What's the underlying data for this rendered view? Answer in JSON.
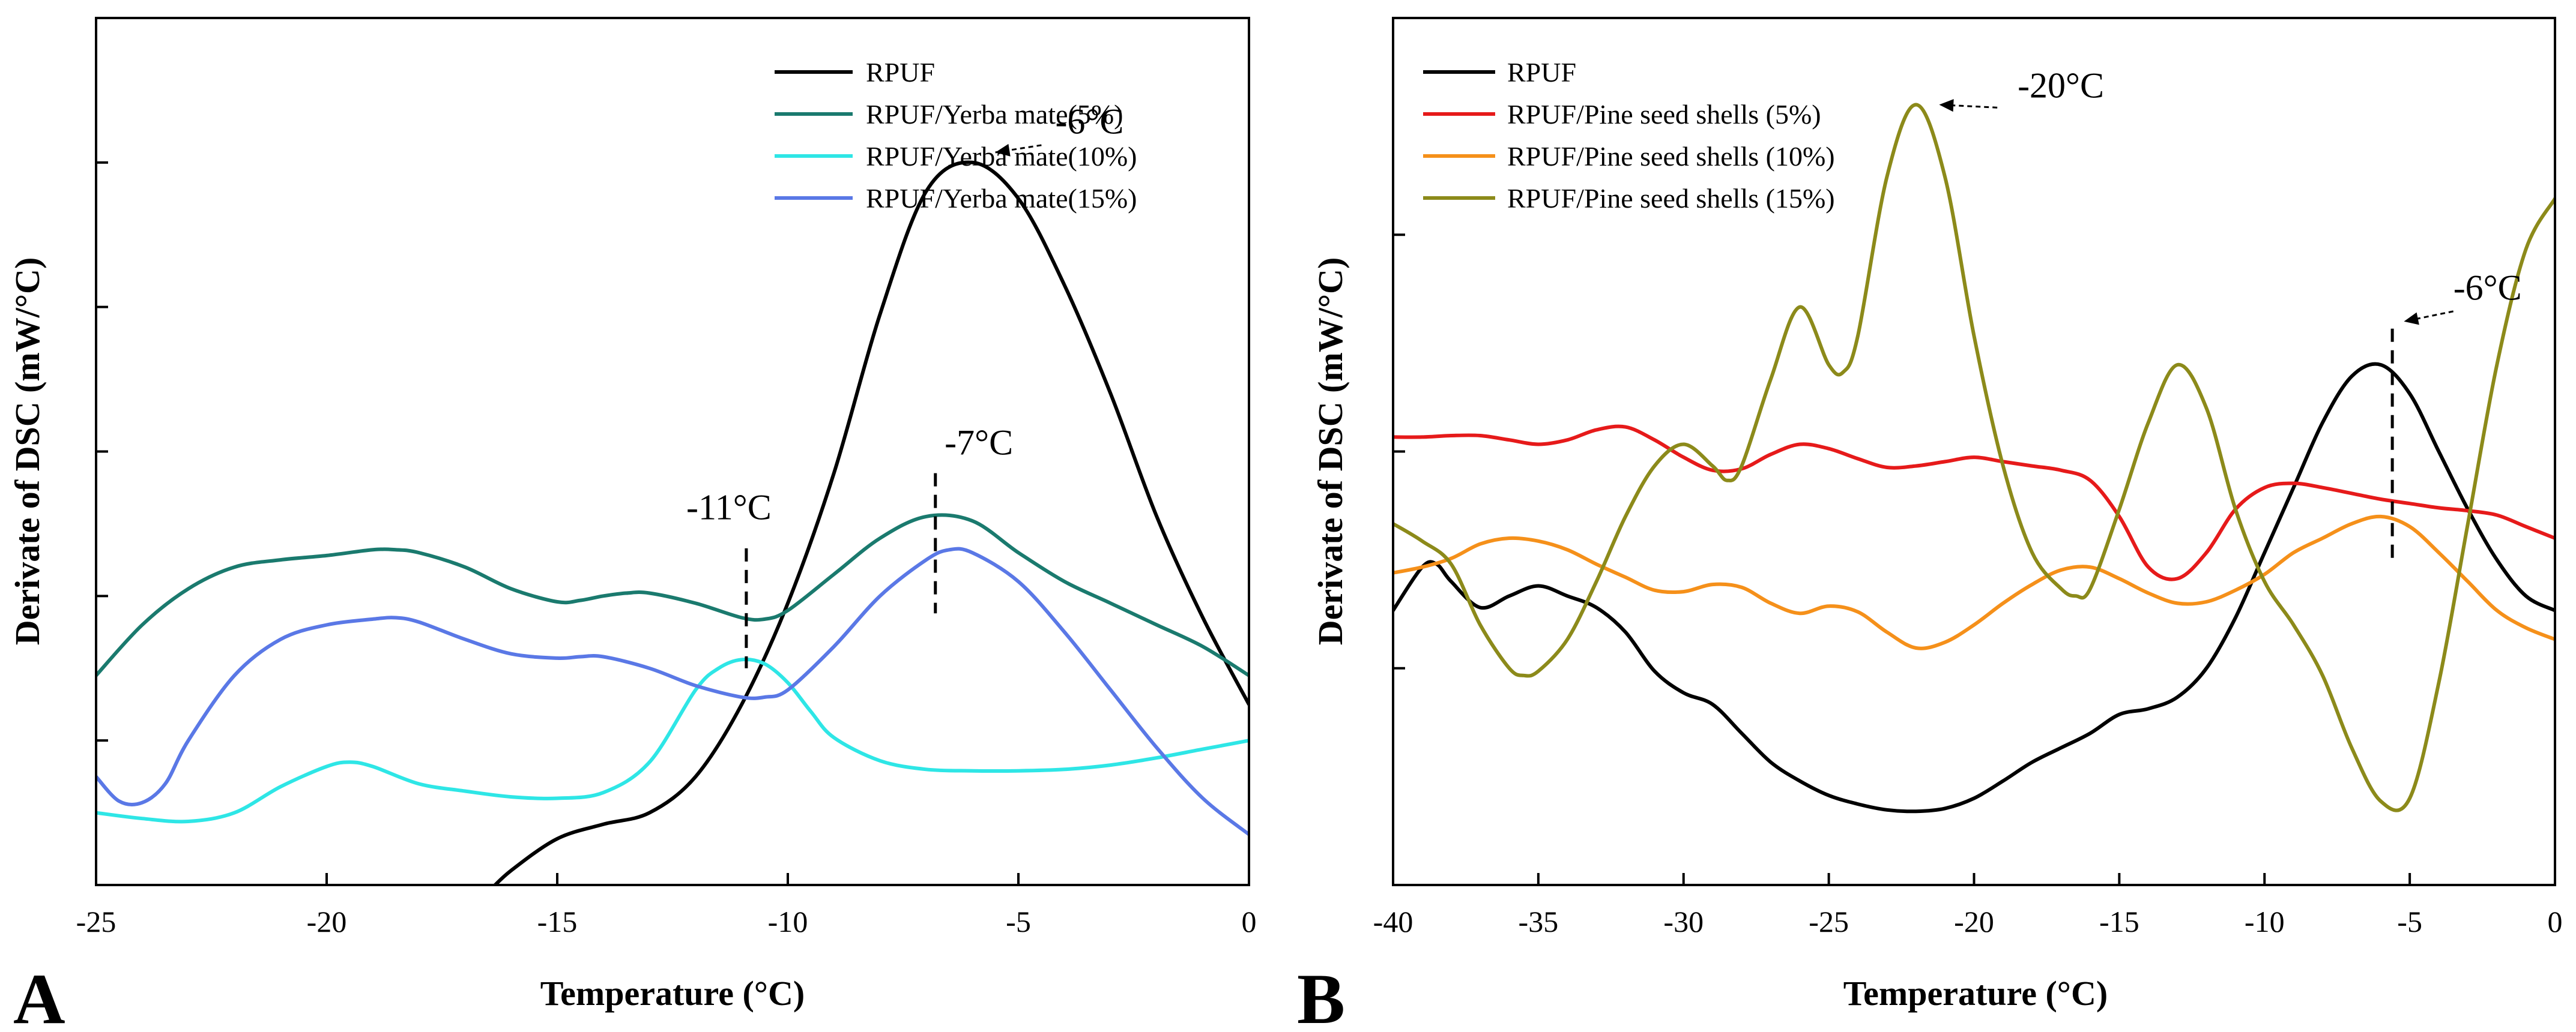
{
  "chart_data": [
    {
      "type": "line",
      "panel_label": "A",
      "xlabel": "Temperature (°C)",
      "ylabel": "Derivate of DSC (mW/°C)",
      "xlim": [
        -25,
        0
      ],
      "ylim": [
        0,
        6
      ],
      "x_ticks": [
        -25,
        -20,
        -15,
        -10,
        -5,
        0
      ],
      "x_tick_labels": [
        "-25",
        "-20",
        "-15",
        "-10",
        "-5",
        "0"
      ],
      "y_ticks": [
        0,
        1,
        2,
        3,
        4,
        5,
        6
      ],
      "grid": false,
      "legend_position": "top-right",
      "series": [
        {
          "name": "RPUF",
          "color": "#000000",
          "x": [
            -16.5,
            -16.0,
            -15.0,
            -14.0,
            -13.0,
            -12.0,
            -11.0,
            -10.0,
            -9.0,
            -8.0,
            -7.0,
            -6.0,
            -5.0,
            -4.0,
            -3.0,
            -2.0,
            -1.0,
            0.0
          ],
          "y": [
            -0.05,
            0.1,
            0.32,
            0.42,
            0.5,
            0.75,
            1.25,
            1.95,
            2.85,
            3.95,
            4.8,
            5.0,
            4.75,
            4.15,
            3.4,
            2.55,
            1.85,
            1.25
          ]
        },
        {
          "name": "RPUF/Yerba mate(5%)",
          "color": "#1a7a6e",
          "x": [
            -25,
            -24,
            -23,
            -22,
            -21,
            -20,
            -19,
            -18.5,
            -18,
            -17,
            -16,
            -15,
            -14.5,
            -14,
            -13.5,
            -13,
            -12,
            -11,
            -10.5,
            -10,
            -9,
            -8,
            -7,
            -6,
            -5,
            -4,
            -3,
            -2,
            -1,
            0
          ],
          "y": [
            1.45,
            1.8,
            2.05,
            2.2,
            2.25,
            2.28,
            2.32,
            2.32,
            2.3,
            2.2,
            2.05,
            1.96,
            1.97,
            2.0,
            2.02,
            2.02,
            1.95,
            1.85,
            1.84,
            1.9,
            2.15,
            2.4,
            2.55,
            2.52,
            2.3,
            2.1,
            1.95,
            1.8,
            1.65,
            1.45
          ]
        },
        {
          "name": "RPUF/Yerba mate(10%)",
          "color": "#2ee6e6",
          "x": [
            -25,
            -24,
            -23,
            -22,
            -21,
            -20,
            -19.5,
            -19,
            -18,
            -17,
            -16,
            -15,
            -14,
            -13,
            -12,
            -11.5,
            -11,
            -10.5,
            -10,
            -9.5,
            -9,
            -8,
            -7,
            -6,
            -5,
            -4,
            -3,
            -2,
            -1,
            0
          ],
          "y": [
            0.5,
            0.46,
            0.44,
            0.5,
            0.68,
            0.82,
            0.85,
            0.82,
            0.7,
            0.65,
            0.61,
            0.6,
            0.64,
            0.85,
            1.35,
            1.5,
            1.56,
            1.53,
            1.4,
            1.2,
            1.02,
            0.86,
            0.8,
            0.79,
            0.79,
            0.8,
            0.83,
            0.88,
            0.94,
            1.0
          ]
        },
        {
          "name": "RPUF/Yerba mate(15%)",
          "color": "#5a78e6",
          "x": [
            -25,
            -24.5,
            -24,
            -23.5,
            -23,
            -22,
            -21,
            -20,
            -19,
            -18.5,
            -18,
            -17,
            -16,
            -15,
            -14.5,
            -14,
            -13,
            -12,
            -11,
            -10.5,
            -10,
            -9,
            -8,
            -7,
            -6.5,
            -6,
            -5,
            -4,
            -3,
            -2,
            -1,
            0
          ],
          "y": [
            0.75,
            0.58,
            0.57,
            0.7,
            1.0,
            1.45,
            1.7,
            1.8,
            1.84,
            1.85,
            1.82,
            1.7,
            1.6,
            1.57,
            1.58,
            1.58,
            1.5,
            1.38,
            1.3,
            1.3,
            1.35,
            1.65,
            2.0,
            2.25,
            2.32,
            2.3,
            2.1,
            1.75,
            1.35,
            0.95,
            0.6,
            0.35
          ]
        }
      ],
      "annotations": [
        {
          "text": "-6°C",
          "x": -4.2,
          "y": 5.2
        },
        {
          "text": "-7°C",
          "x": -6.6,
          "y": 2.98
        },
        {
          "text": "-11°C",
          "x": -12.2,
          "y": 2.53
        }
      ]
    },
    {
      "type": "line",
      "panel_label": "B",
      "xlabel": "Temperature (°C)",
      "ylabel": "Derivate of DSC (mW/°C)",
      "xlim": [
        -40,
        0
      ],
      "ylim": [
        0,
        6
      ],
      "x_ticks": [
        -40,
        -35,
        -30,
        -25,
        -20,
        -15,
        -10,
        -5,
        0
      ],
      "x_tick_labels": [
        "-40",
        "-35",
        "-30",
        "-25",
        "-20",
        "-15",
        "-10",
        "-5",
        "0"
      ],
      "y_ticks": [
        0,
        1.5,
        3,
        4.5,
        6
      ],
      "grid": false,
      "legend_position": "top-left",
      "series": [
        {
          "name": "RPUF",
          "color": "#000000",
          "x": [
            -40,
            -39,
            -38.5,
            -38,
            -37,
            -36,
            -35,
            -34,
            -33,
            -32,
            -31,
            -30,
            -29,
            -28,
            -27,
            -26,
            -25,
            -24,
            -23,
            -22,
            -21,
            -20,
            -19,
            -18,
            -17,
            -16,
            -15,
            -14,
            -13,
            -12,
            -11,
            -10,
            -9,
            -8,
            -7,
            -6,
            -5,
            -4,
            -3,
            -2,
            -1,
            0
          ],
          "y": [
            1.9,
            2.2,
            2.22,
            2.1,
            1.92,
            2.0,
            2.07,
            2.0,
            1.92,
            1.75,
            1.48,
            1.33,
            1.25,
            1.05,
            0.85,
            0.72,
            0.62,
            0.56,
            0.52,
            0.51,
            0.53,
            0.6,
            0.72,
            0.85,
            0.95,
            1.05,
            1.18,
            1.22,
            1.3,
            1.5,
            1.85,
            2.3,
            2.75,
            3.2,
            3.52,
            3.6,
            3.4,
            3.0,
            2.6,
            2.25,
            2.0,
            1.9
          ]
        },
        {
          "name": "RPUF/Pine seed shells (5%)",
          "color": "#e61a1a",
          "x": [
            -40,
            -39,
            -38,
            -37,
            -36,
            -35,
            -34,
            -33,
            -32,
            -31,
            -30,
            -29,
            -28,
            -27,
            -26,
            -25,
            -24,
            -23,
            -22,
            -21,
            -20,
            -19,
            -18,
            -17,
            -16,
            -15,
            -14,
            -13,
            -12,
            -11,
            -10,
            -9,
            -8,
            -7,
            -6,
            -5,
            -4,
            -3,
            -2,
            -1,
            0
          ],
          "y": [
            3.1,
            3.1,
            3.11,
            3.11,
            3.08,
            3.05,
            3.08,
            3.15,
            3.17,
            3.08,
            2.96,
            2.87,
            2.88,
            2.98,
            3.05,
            3.02,
            2.95,
            2.89,
            2.9,
            2.93,
            2.96,
            2.93,
            2.9,
            2.87,
            2.8,
            2.55,
            2.2,
            2.12,
            2.3,
            2.6,
            2.75,
            2.78,
            2.75,
            2.71,
            2.67,
            2.64,
            2.61,
            2.59,
            2.56,
            2.48,
            2.4
          ]
        },
        {
          "name": "RPUF/Pine seed shells (10%)",
          "color": "#f5901a",
          "x": [
            -40,
            -39,
            -38,
            -37,
            -36,
            -35,
            -34,
            -33,
            -32,
            -31,
            -30,
            -29,
            -28,
            -27,
            -26,
            -25,
            -24,
            -23,
            -22,
            -21,
            -20,
            -19,
            -18,
            -17,
            -16,
            -15,
            -14,
            -13,
            -12,
            -11,
            -10,
            -9,
            -8,
            -7,
            -6,
            -5,
            -4,
            -3,
            -2,
            -1,
            0
          ],
          "y": [
            2.16,
            2.2,
            2.26,
            2.36,
            2.4,
            2.38,
            2.32,
            2.22,
            2.13,
            2.04,
            2.03,
            2.08,
            2.06,
            1.95,
            1.88,
            1.93,
            1.89,
            1.75,
            1.64,
            1.68,
            1.8,
            1.95,
            2.08,
            2.18,
            2.2,
            2.12,
            2.02,
            1.95,
            1.96,
            2.04,
            2.15,
            2.3,
            2.4,
            2.5,
            2.55,
            2.48,
            2.3,
            2.1,
            1.9,
            1.78,
            1.7
          ]
        },
        {
          "name": "RPUF/Pine seed shells (15%)",
          "color": "#8c8a1a",
          "x": [
            -40,
            -39,
            -38,
            -37,
            -36,
            -35.5,
            -35,
            -34,
            -33,
            -32,
            -31,
            -30,
            -29,
            -28.5,
            -28,
            -27,
            -26,
            -25,
            -24.5,
            -24,
            -23,
            -22,
            -21,
            -20,
            -19,
            -18,
            -17,
            -16.5,
            -16,
            -15,
            -14,
            -13,
            -12,
            -11,
            -10,
            -9,
            -8,
            -7,
            -6,
            -5,
            -4,
            -3,
            -2,
            -1,
            0
          ],
          "y": [
            2.5,
            2.38,
            2.22,
            1.8,
            1.5,
            1.45,
            1.48,
            1.7,
            2.1,
            2.55,
            2.9,
            3.05,
            2.9,
            2.8,
            2.9,
            3.5,
            4.0,
            3.6,
            3.55,
            3.8,
            4.9,
            5.4,
            4.9,
            3.8,
            2.9,
            2.3,
            2.05,
            2.0,
            2.05,
            2.6,
            3.2,
            3.6,
            3.3,
            2.6,
            2.1,
            1.8,
            1.45,
            0.95,
            0.58,
            0.6,
            1.4,
            2.5,
            3.6,
            4.4,
            4.75
          ]
        }
      ],
      "annotations": [
        {
          "text": "-20°C",
          "x": -18.5,
          "y": 5.45
        },
        {
          "text": "-6°C",
          "x": -3.5,
          "y": 4.05
        }
      ]
    }
  ]
}
